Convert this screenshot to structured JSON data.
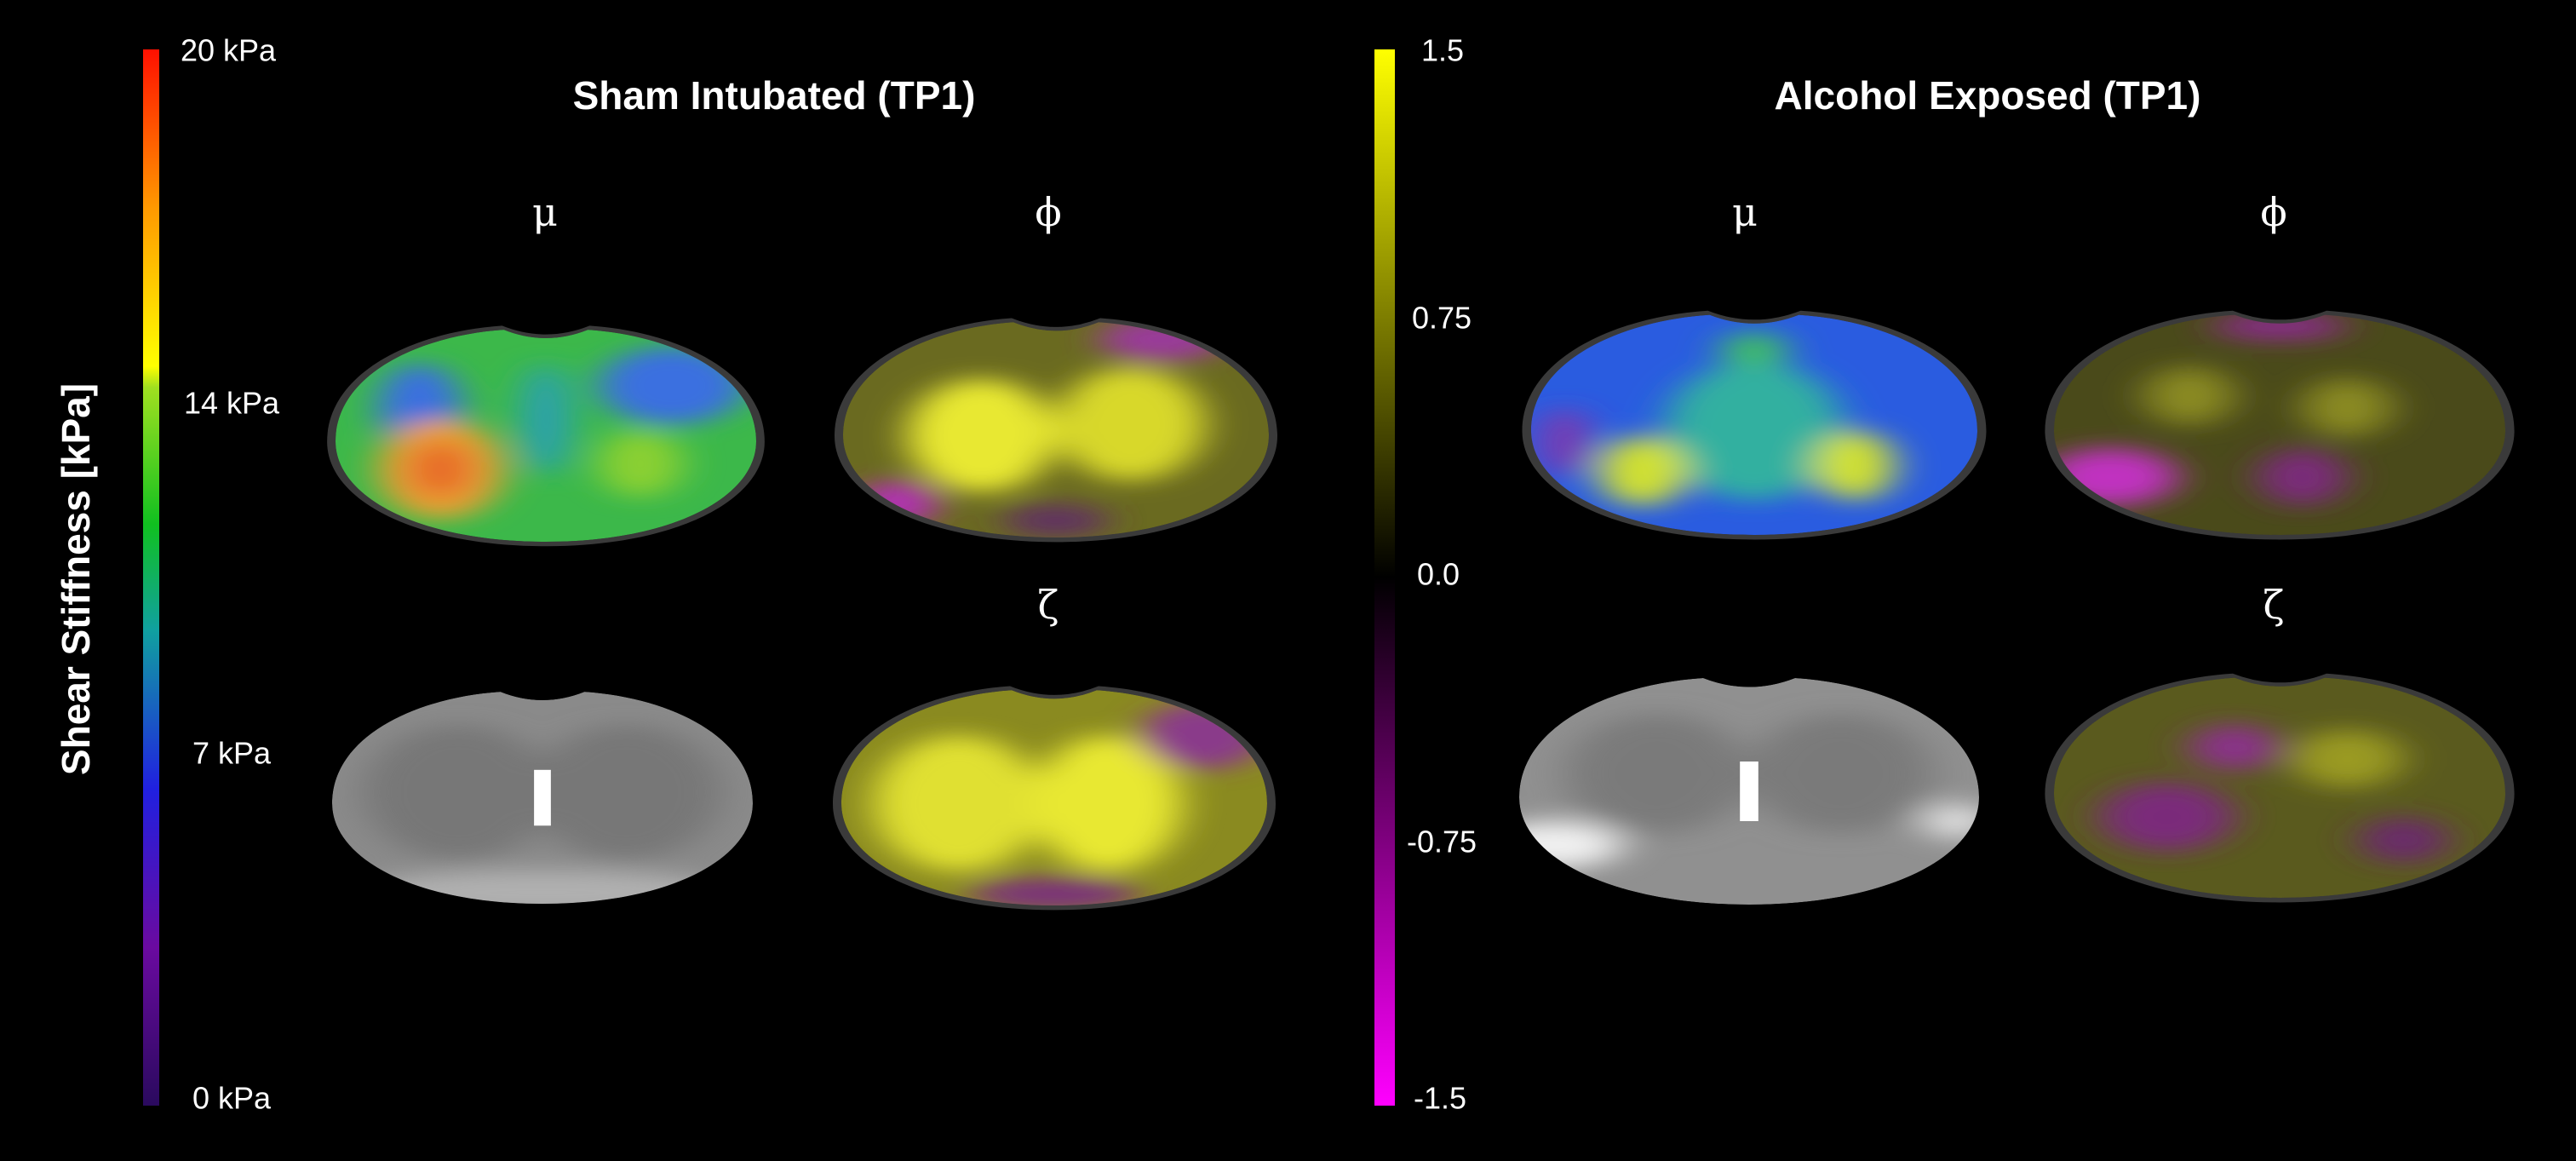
{
  "colorbars": [
    {
      "title": "Shear Stiffness [kPa]",
      "ticks": [
        "20 kPa",
        "14 kPa",
        "7 kPa",
        "0 kPa"
      ]
    },
    {
      "ticks": [
        "1.5",
        "0.75",
        "0.0",
        "-0.75",
        "-1.5"
      ]
    }
  ],
  "panels": [
    {
      "title": "Sham Intubated (TP1)",
      "labels": [
        "μ",
        "ϕ",
        "ζ"
      ]
    },
    {
      "title": "Alcohol Exposed (TP1)",
      "labels": [
        "μ",
        "ϕ",
        "ζ"
      ]
    }
  ]
}
